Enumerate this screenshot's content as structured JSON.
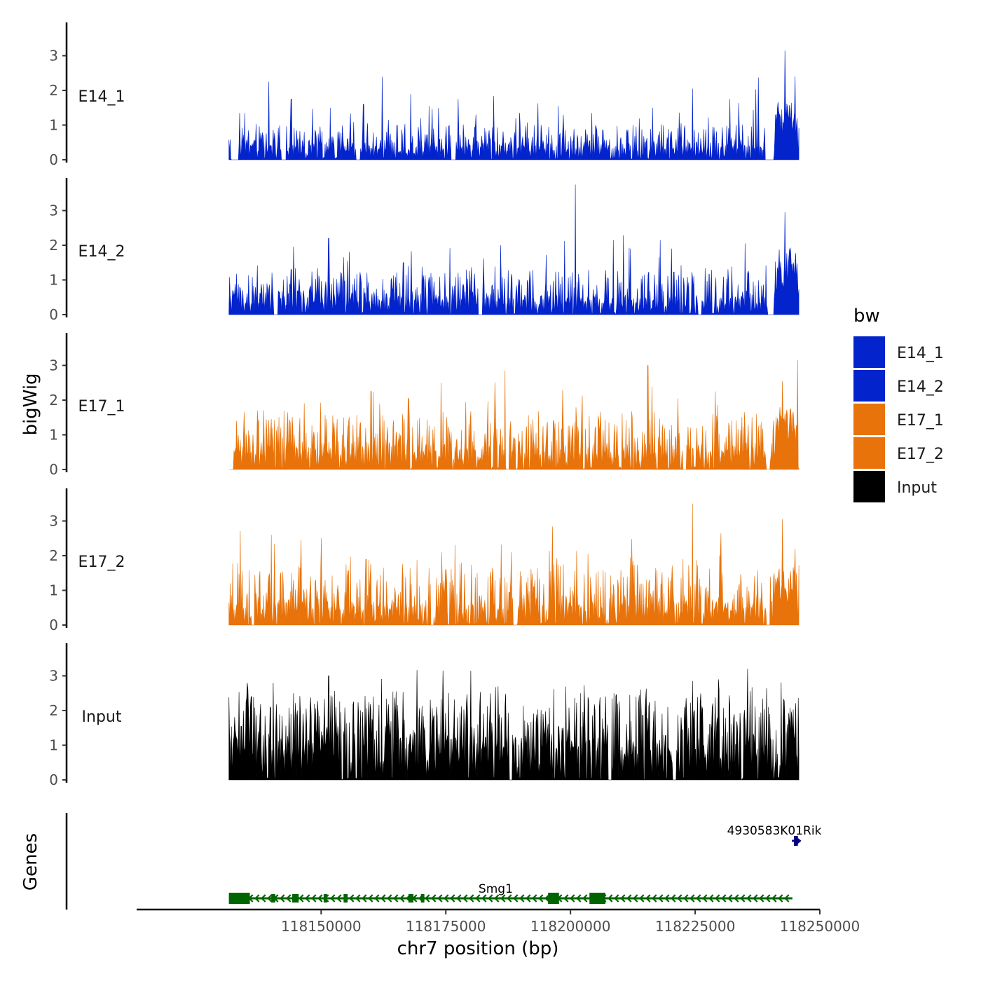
{
  "chart_data": {
    "type": "area",
    "title": "",
    "ylabel": "bigWig",
    "genes_panel_label": "Genes",
    "xlabel": "chr7 position (bp)",
    "xlim": [
      118113000,
      118250000
    ],
    "ylim": [
      0,
      3.9
    ],
    "x_ticks": [
      118150000,
      118175000,
      118200000,
      118225000,
      118250000
    ],
    "x_tick_labels": [
      "118150000",
      "118175000",
      "118200000",
      "118225000",
      "118250000"
    ],
    "y_ticks": [
      0,
      1,
      2,
      3
    ],
    "y_tick_labels": [
      "0",
      "1",
      "2",
      "3"
    ],
    "signal_range": [
      118131500,
      118245800
    ],
    "legend": {
      "title": "bw",
      "position": "right",
      "entries": [
        {
          "label": "E14_1",
          "color": "#0323CC"
        },
        {
          "label": "E14_2",
          "color": "#0323CC"
        },
        {
          "label": "E17_1",
          "color": "#E8730A"
        },
        {
          "label": "E17_2",
          "color": "#E8730A"
        },
        {
          "label": "Input",
          "color": "#000000"
        }
      ]
    },
    "series": [
      {
        "name": "E14_1",
        "color": "#0323CC",
        "baseline": 0.25,
        "noise": 0.35,
        "peaks": [
          {
            "x": 118139500,
            "y": 2.25
          },
          {
            "x": 118144000,
            "y": 1.75
          },
          {
            "x": 118158500,
            "y": 1.6
          },
          {
            "x": 118163500,
            "y": 1.15
          },
          {
            "x": 118170000,
            "y": 1.2
          },
          {
            "x": 118177500,
            "y": 1.75
          },
          {
            "x": 118181000,
            "y": 1.3
          },
          {
            "x": 118189000,
            "y": 1.2
          },
          {
            "x": 118197500,
            "y": 1.55
          },
          {
            "x": 118205000,
            "y": 1.0
          },
          {
            "x": 118212500,
            "y": 1.0
          },
          {
            "x": 118216500,
            "y": 1.5
          },
          {
            "x": 118224500,
            "y": 2.05
          },
          {
            "x": 118232000,
            "y": 1.75
          },
          {
            "x": 118243000,
            "y": 3.15
          },
          {
            "x": 118245000,
            "y": 2.4
          }
        ],
        "gaps": [
          [
            118132000,
            118133500
          ],
          [
            118142000,
            118143000
          ],
          [
            118157000,
            118157800
          ],
          [
            118176000,
            118177000
          ],
          [
            118239000,
            118240800
          ]
        ],
        "block": {
          "start": 118241000,
          "end": 118245500,
          "level": 1.2
        }
      },
      {
        "name": "E14_2",
        "color": "#0323CC",
        "baseline": 0.3,
        "noise": 0.45,
        "peaks": [
          {
            "x": 118144000,
            "y": 1.3
          },
          {
            "x": 118151500,
            "y": 2.2
          },
          {
            "x": 118154500,
            "y": 1.65
          },
          {
            "x": 118166500,
            "y": 1.5
          },
          {
            "x": 118186000,
            "y": 2.0
          },
          {
            "x": 118201000,
            "y": 3.75
          },
          {
            "x": 118212000,
            "y": 1.9
          },
          {
            "x": 118218000,
            "y": 2.15
          },
          {
            "x": 118235000,
            "y": 2.05
          },
          {
            "x": 118243000,
            "y": 2.95
          },
          {
            "x": 118246000,
            "y": 2.7
          }
        ],
        "gaps": [
          [
            118140500,
            118141300
          ],
          [
            118181500,
            118182300
          ],
          [
            118225500,
            118226300
          ],
          [
            118239500,
            118240800
          ]
        ],
        "block": {
          "start": 118241000,
          "end": 118245500,
          "level": 1.4
        }
      },
      {
        "name": "E17_1",
        "color": "#E8730A",
        "baseline": 0.35,
        "noise": 0.55,
        "peaks": [
          {
            "x": 118134500,
            "y": 1.65
          },
          {
            "x": 118140000,
            "y": 1.45
          },
          {
            "x": 118154500,
            "y": 1.5
          },
          {
            "x": 118160000,
            "y": 2.25
          },
          {
            "x": 118167500,
            "y": 2.05
          },
          {
            "x": 118174000,
            "y": 2.5
          },
          {
            "x": 118185000,
            "y": 1.6
          },
          {
            "x": 118192500,
            "y": 1.45
          },
          {
            "x": 118205500,
            "y": 1.55
          },
          {
            "x": 118215500,
            "y": 3.0
          },
          {
            "x": 118221500,
            "y": 2.05
          },
          {
            "x": 118228500,
            "y": 1.6
          },
          {
            "x": 118242500,
            "y": 2.55
          },
          {
            "x": 118245500,
            "y": 3.15
          }
        ],
        "gaps": [
          [
            118131500,
            118132300
          ],
          [
            118187000,
            118187700
          ],
          [
            118222500,
            118223300
          ],
          [
            118239200,
            118240000
          ]
        ],
        "block": {
          "start": 118241000,
          "end": 118245500,
          "level": 1.3
        }
      },
      {
        "name": "E17_2",
        "color": "#E8730A",
        "baseline": 0.35,
        "noise": 0.6,
        "peaks": [
          {
            "x": 118136500,
            "y": 2.1
          },
          {
            "x": 118140000,
            "y": 2.6
          },
          {
            "x": 118146000,
            "y": 2.45
          },
          {
            "x": 118150000,
            "y": 2.5
          },
          {
            "x": 118159000,
            "y": 1.9
          },
          {
            "x": 118175000,
            "y": 1.6
          },
          {
            "x": 118184500,
            "y": 1.5
          },
          {
            "x": 118196000,
            "y": 1.55
          },
          {
            "x": 118203500,
            "y": 2.05
          },
          {
            "x": 118212000,
            "y": 1.95
          },
          {
            "x": 118224500,
            "y": 3.5
          },
          {
            "x": 118230000,
            "y": 2.0
          },
          {
            "x": 118242500,
            "y": 3.05
          },
          {
            "x": 118245000,
            "y": 2.2
          }
        ],
        "gaps": [
          [
            118136000,
            118136600
          ],
          [
            118172000,
            118172600
          ],
          [
            118188500,
            118189300
          ],
          [
            118239200,
            118240000
          ]
        ],
        "block": {
          "start": 118241000,
          "end": 118245500,
          "level": 1.2
        }
      },
      {
        "name": "Input",
        "color": "#000000",
        "baseline": 0.75,
        "noise": 0.8,
        "peaks": [
          {
            "x": 118136000,
            "y": 2.4
          },
          {
            "x": 118144500,
            "y": 2.5
          },
          {
            "x": 118151500,
            "y": 3.0
          },
          {
            "x": 118160500,
            "y": 2.4
          },
          {
            "x": 118180000,
            "y": 3.15
          },
          {
            "x": 118185500,
            "y": 2.7
          },
          {
            "x": 118194500,
            "y": 1.9
          },
          {
            "x": 118202000,
            "y": 2.5
          },
          {
            "x": 118214000,
            "y": 2.6
          },
          {
            "x": 118224500,
            "y": 2.85
          },
          {
            "x": 118235500,
            "y": 3.2
          },
          {
            "x": 118240000,
            "y": 1.9
          },
          {
            "x": 118245000,
            "y": 1.5
          }
        ],
        "gaps": [
          [
            118187700,
            118188300
          ],
          [
            118207500,
            118208300
          ],
          [
            118220500,
            118221200
          ]
        ],
        "block": null
      }
    ],
    "genes": [
      {
        "name": "Smg1",
        "label": "Smg1",
        "strand": "-",
        "color": "#006400",
        "start": 118131500,
        "end": 118244500,
        "exons": [
          [
            118131500,
            118135700
          ],
          [
            118140000,
            118140800
          ],
          [
            118144200,
            118145500
          ],
          [
            118150500,
            118151200
          ],
          [
            118154500,
            118155300
          ],
          [
            118167500,
            118168500
          ],
          [
            118170000,
            118170700
          ],
          [
            118195500,
            118197700
          ],
          [
            118203800,
            118207000
          ]
        ]
      },
      {
        "name": "4930583K01Rik",
        "label": "4930583K01Rik",
        "strand": "+",
        "color": "#000080",
        "start": 118244400,
        "end": 118245800,
        "exons": [
          [
            118244800,
            118245600
          ]
        ]
      }
    ]
  }
}
